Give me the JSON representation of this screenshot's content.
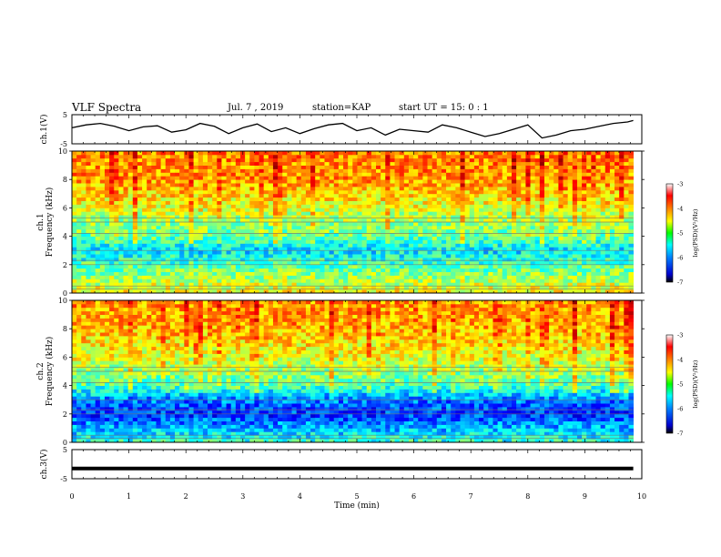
{
  "header": {
    "title": "VLF Spectra",
    "date": "Jul. 7 , 2019",
    "station": "station=KAP",
    "start_ut": "start UT = 15: 0 : 1"
  },
  "chart_data": [
    {
      "type": "line",
      "panel": "ch1-waveform",
      "ylabel": "ch.1(V)",
      "ylim": [
        -5,
        5
      ],
      "yticks": [
        "5",
        "-5"
      ],
      "xlim": [
        0,
        10
      ],
      "note_series": "noisy waveform around 0 V spanning roughly -3 to +3 V",
      "x": [
        0,
        0.25,
        0.5,
        0.75,
        1,
        1.25,
        1.5,
        1.75,
        2,
        2.25,
        2.5,
        2.75,
        3,
        3.25,
        3.5,
        3.75,
        4,
        4.25,
        4.5,
        4.75,
        5,
        5.25,
        5.5,
        5.75,
        6,
        6.25,
        6.5,
        6.75,
        7,
        7.25,
        7.5,
        7.75,
        8,
        8.25,
        8.5,
        8.75,
        9,
        9.25,
        9.5,
        9.75,
        9.85
      ],
      "y": [
        0.5,
        1.5,
        2.0,
        1.0,
        -0.5,
        0.8,
        1.2,
        -1.0,
        -0.2,
        2.0,
        1.0,
        -1.5,
        0.5,
        1.8,
        -0.8,
        0.5,
        -1.5,
        0.2,
        1.5,
        2.0,
        -0.5,
        0.5,
        -2.0,
        0.0,
        -0.5,
        -1.0,
        1.5,
        0.5,
        -1.0,
        -2.5,
        -1.5,
        0.0,
        1.5,
        -3.0,
        -2.0,
        -0.5,
        0.0,
        1.0,
        2.0,
        2.5,
        3.0
      ]
    },
    {
      "type": "heatmap",
      "panel": "ch1-spectrogram",
      "ylabel_top": "ch.1",
      "ylabel": "Frequency (kHz)",
      "ylim": [
        0,
        10
      ],
      "yticks": [
        "0",
        "2",
        "4",
        "6",
        "8",
        "10"
      ],
      "xlim": [
        0,
        10
      ],
      "colorbar": {
        "label": "log(PSD)(V²/Hz)",
        "range": [
          -7,
          -3
        ],
        "ticks": [
          "-3",
          "-4",
          "-5",
          "-6",
          "-7"
        ]
      },
      "band_levels_kHz": [
        0,
        1,
        2,
        3,
        4,
        5,
        6,
        8,
        10
      ],
      "log_psd_by_band": [
        -4.5,
        -4.8,
        -5.2,
        -5.6,
        -5.1,
        -4.9,
        -4.6,
        -4.1,
        -4.0
      ]
    },
    {
      "type": "heatmap",
      "panel": "ch2-spectrogram",
      "ylabel_top": "ch.2",
      "ylabel": "Frequency (kHz)",
      "ylim": [
        0,
        10
      ],
      "yticks": [
        "0",
        "2",
        "4",
        "6",
        "8",
        "10"
      ],
      "xlim": [
        0,
        10
      ],
      "colorbar": {
        "label": "log(PSD)(V²/Hz)",
        "range": [
          -7,
          -3
        ],
        "ticks": [
          "-3",
          "-4",
          "-5",
          "-6",
          "-7"
        ]
      },
      "band_levels_kHz": [
        0,
        1,
        2,
        3,
        4,
        5,
        6,
        8,
        10
      ],
      "log_psd_by_band": [
        -5.3,
        -5.8,
        -6.3,
        -6.0,
        -5.2,
        -4.9,
        -4.6,
        -4.2,
        -4.1
      ]
    },
    {
      "type": "line",
      "panel": "ch3-waveform",
      "ylabel": "ch.3(V)",
      "ylim": [
        -5,
        5
      ],
      "yticks": [
        "5",
        "-5"
      ],
      "xlim": [
        0,
        10
      ],
      "x": [
        0,
        9.85
      ],
      "y": [
        -1.5,
        -1.5
      ]
    }
  ],
  "xaxis": {
    "label": "Time (min)",
    "ticks": [
      "0",
      "1",
      "2",
      "3",
      "4",
      "5",
      "6",
      "7",
      "8",
      "9",
      "10"
    ]
  },
  "colors": {
    "jet_low": "#00007f",
    "jet_mid": "#00ff00",
    "jet_high": "#7f0000",
    "trace": "#000000"
  }
}
